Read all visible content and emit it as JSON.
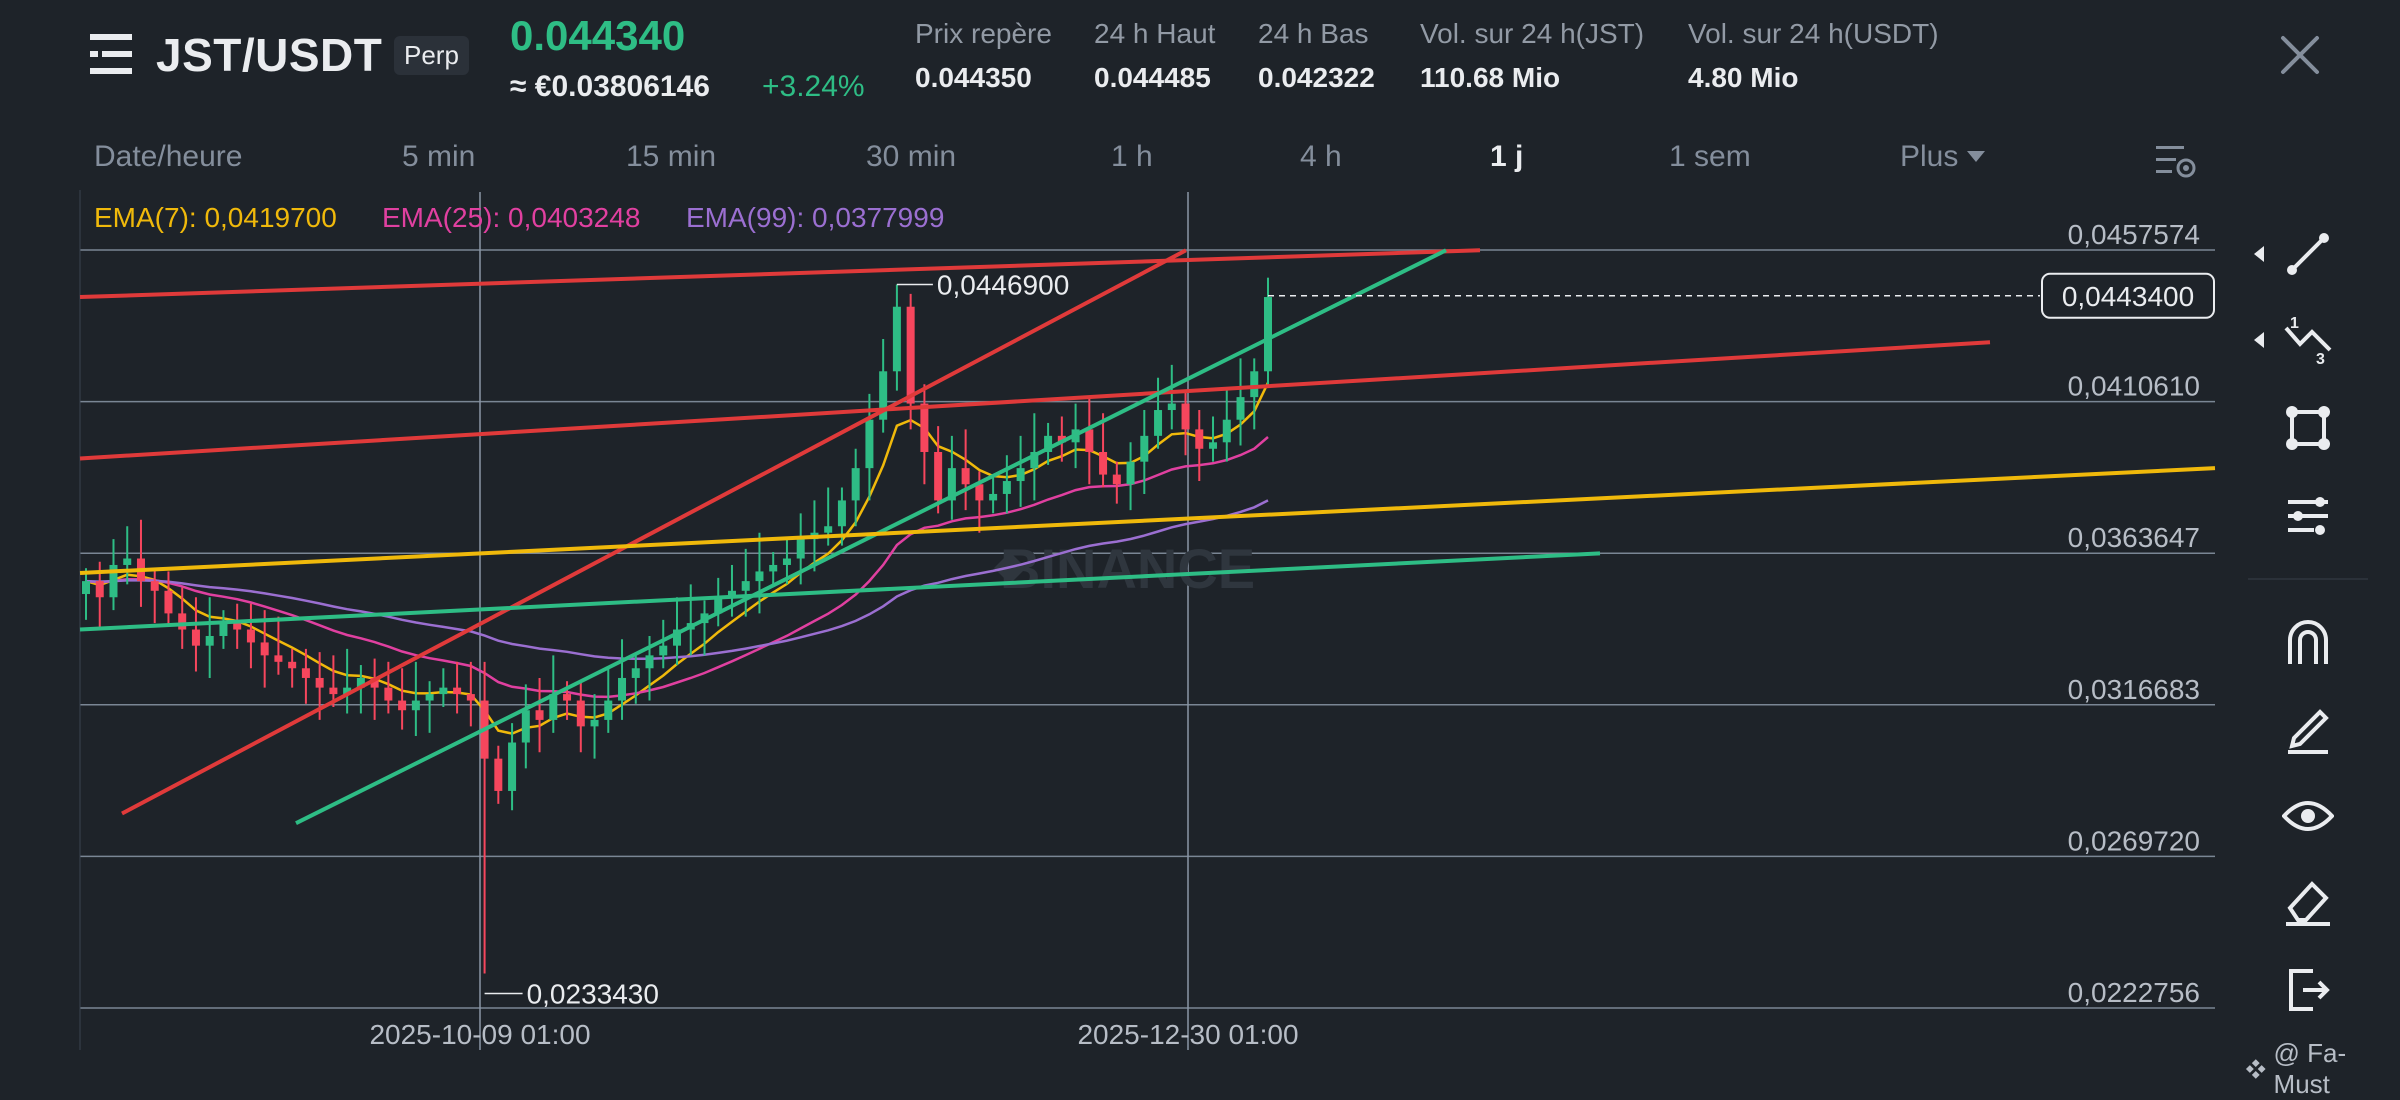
{
  "header": {
    "menu_icon": "hamburger-menu-icon",
    "pair": "JST/USDT",
    "badge": "Perp",
    "last_price": "0.044340",
    "eur_price": "≈ €0.03806146",
    "change": "+3.24%",
    "stats": [
      {
        "label": "Prix repère",
        "value": "0.044350"
      },
      {
        "label": "24 h Haut",
        "value": "0.044485"
      },
      {
        "label": "24 h Bas",
        "value": "0.042322"
      },
      {
        "label": "Vol. sur 24 h(JST)",
        "value": "110.68 Mio"
      },
      {
        "label": "Vol. sur 24 h(USDT)",
        "value": "4.80 Mio"
      }
    ],
    "close_icon": "close-icon"
  },
  "tabs": [
    {
      "label": "Date/heure",
      "active": false
    },
    {
      "label": "5 min",
      "active": false
    },
    {
      "label": "15 min",
      "active": false
    },
    {
      "label": "30 min",
      "active": false
    },
    {
      "label": "1 h",
      "active": false
    },
    {
      "label": "4 h",
      "active": false
    },
    {
      "label": "1 j",
      "active": true
    },
    {
      "label": "1 sem",
      "active": false
    },
    {
      "label": "Plus",
      "active": false
    }
  ],
  "legend": {
    "ema7": "EMA(7): 0,0419700",
    "ema25": "EMA(25): 0,0403248",
    "ema99": "EMA(99): 0,0377999"
  },
  "colors": {
    "up": "#2ebd85",
    "down": "#f6465d",
    "ema7": "#f0b90b",
    "ema25": "#e040a0",
    "ema99": "#9b6fd1",
    "red_line": "#e03a3a",
    "green_line": "#2ebd85",
    "yellow_line": "#f0b90b"
  },
  "watermark": "BINANCE",
  "credit": "@ Fa-Must",
  "toolbar": [
    "trend-line-icon",
    "fibonacci-icon",
    "rectangle-icon",
    "indicator-settings-icon",
    "magnet-icon",
    "pen-icon",
    "eye-icon",
    "eraser-icon",
    "exit-icon"
  ],
  "chart_data": {
    "type": "candlestick",
    "ylim": [
      0.0222756,
      0.0457574
    ],
    "y_ticks": [
      "0,0457574",
      "0,0410610",
      "0,0363647",
      "0,0316683",
      "0,0269720",
      "0,0222756"
    ],
    "x_ticks": [
      "2025-10-09 01:00",
      "2025-12-30 01:00"
    ],
    "current_price_label": "0,0443400",
    "annotations": {
      "high": "0,0446900",
      "low": "0,0233430"
    },
    "series_close": [
      0.0355,
      0.035,
      0.036,
      0.0362,
      0.0355,
      0.0352,
      0.0345,
      0.034,
      0.0335,
      0.0338,
      0.0342,
      0.034,
      0.0336,
      0.0332,
      0.033,
      0.0328,
      0.0325,
      0.0322,
      0.032,
      0.0322,
      0.0325,
      0.0322,
      0.0318,
      0.0315,
      0.0318,
      0.032,
      0.0322,
      0.032,
      0.0318,
      0.03,
      0.029,
      0.0305,
      0.0315,
      0.0312,
      0.032,
      0.0318,
      0.031,
      0.0312,
      0.0318,
      0.0325,
      0.0328,
      0.0332,
      0.0335,
      0.034,
      0.0342,
      0.0345,
      0.035,
      0.0352,
      0.0355,
      0.0358,
      0.036,
      0.0362,
      0.0368,
      0.037,
      0.0372,
      0.038,
      0.039,
      0.0405,
      0.042,
      0.044,
      0.041,
      0.0395,
      0.038,
      0.039,
      0.0385,
      0.038,
      0.0382,
      0.0386,
      0.039,
      0.0395,
      0.04,
      0.0398,
      0.0402,
      0.0395,
      0.0388,
      0.0385,
      0.0392,
      0.04,
      0.0408,
      0.041,
      0.0402,
      0.0396,
      0.0398,
      0.0405,
      0.0412,
      0.042,
      0.0443
    ]
  }
}
